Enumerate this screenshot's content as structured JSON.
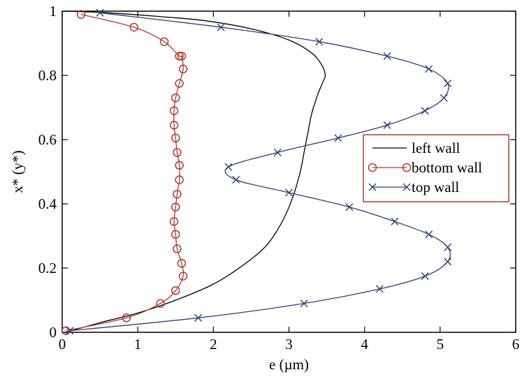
{
  "chart_data": {
    "type": "line",
    "xlabel": "e (µm)",
    "ylabel": "x* (y*)",
    "xlim": [
      0,
      6
    ],
    "ylim": [
      0,
      1
    ],
    "xticks": [
      "0",
      "1",
      "2",
      "3",
      "4",
      "5",
      "6"
    ],
    "yticks": [
      "0",
      "0.2",
      "0.4",
      "0.6",
      "0.8",
      "1"
    ],
    "grid": false,
    "legend_position": "center-right",
    "series": [
      {
        "name": "left wall",
        "color": "#000000",
        "marker": "none",
        "x": [
          0.05,
          0.5,
          1.0,
          1.5,
          2.0,
          2.4,
          2.7,
          2.9,
          3.05,
          3.15,
          3.2,
          3.25,
          3.3,
          3.38,
          3.45,
          3.48,
          3.44,
          3.3,
          3.0,
          2.5,
          1.9,
          1.2,
          0.6,
          0.2,
          0.05
        ],
        "y": [
          0.0,
          0.03,
          0.06,
          0.1,
          0.15,
          0.21,
          0.27,
          0.34,
          0.42,
          0.5,
          0.56,
          0.62,
          0.68,
          0.74,
          0.78,
          0.8,
          0.83,
          0.87,
          0.91,
          0.945,
          0.97,
          0.985,
          0.995,
          0.999,
          1.0
        ]
      },
      {
        "name": "bottom wall",
        "color": "#b03a2e",
        "marker": "circle",
        "x": [
          0.05,
          0.85,
          1.3,
          1.5,
          1.6,
          1.58,
          1.52,
          1.5,
          1.48,
          1.5,
          1.52,
          1.55,
          1.55,
          1.52,
          1.5,
          1.48,
          1.48,
          1.5,
          1.55,
          1.6,
          1.58,
          1.55,
          1.35,
          0.95,
          0.25
        ],
        "y": [
          0.005,
          0.045,
          0.09,
          0.13,
          0.175,
          0.215,
          0.26,
          0.305,
          0.345,
          0.39,
          0.43,
          0.475,
          0.52,
          0.56,
          0.605,
          0.645,
          0.69,
          0.73,
          0.775,
          0.82,
          0.86,
          0.86,
          0.905,
          0.95,
          0.99
        ]
      },
      {
        "name": "top wall",
        "color": "#2c3e7a",
        "marker": "x",
        "x": [
          0.1,
          1.8,
          3.2,
          4.2,
          4.8,
          5.1,
          5.1,
          4.85,
          4.4,
          3.8,
          3.0,
          2.3,
          2.2,
          2.85,
          3.65,
          4.3,
          4.8,
          5.05,
          5.1,
          4.85,
          4.3,
          3.4,
          2.1,
          0.5
        ],
        "y": [
          0.005,
          0.045,
          0.09,
          0.135,
          0.175,
          0.22,
          0.265,
          0.305,
          0.345,
          0.39,
          0.435,
          0.475,
          0.515,
          0.56,
          0.605,
          0.645,
          0.69,
          0.73,
          0.775,
          0.82,
          0.86,
          0.905,
          0.95,
          0.995
        ]
      }
    ]
  }
}
